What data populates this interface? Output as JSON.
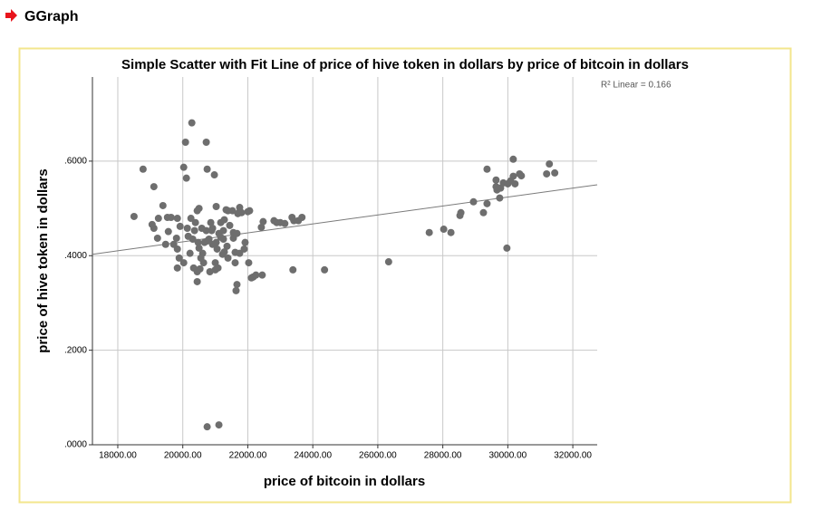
{
  "header": "GGraph",
  "chart_data": {
    "type": "scatter",
    "title": "Simple Scatter with Fit Line of price of hive token in dollars by price of bitcoin in dollars",
    "x_label": "price of bitcoin in dollars",
    "y_label": "price of hive token in dollars",
    "annotation": "R² Linear = 0.166",
    "color": "#6e6e6e",
    "fit_color": "#7a7a7a",
    "grid": true,
    "xlim": [
      17220,
      32750
    ],
    "ylim": [
      0,
      0.778
    ],
    "xticks": [
      {
        "value": 18000,
        "label": "18000.00"
      },
      {
        "value": 20000,
        "label": "20000.00"
      },
      {
        "value": 22000,
        "label": "22000.00"
      },
      {
        "value": 24000,
        "label": "24000.00"
      },
      {
        "value": 26000,
        "label": "26000.00"
      },
      {
        "value": 28000,
        "label": "28000.00"
      },
      {
        "value": 30000,
        "label": "30000.00"
      },
      {
        "value": 32000,
        "label": "32000.00"
      }
    ],
    "yticks": [
      {
        "value": 0,
        "label": ".0000"
      },
      {
        "value": 0.2,
        "label": ".2000"
      },
      {
        "value": 0.4,
        "label": ".4000"
      },
      {
        "value": 0.6,
        "label": ".6000"
      }
    ],
    "fit_line": {
      "x": [
        17220,
        32750
      ],
      "y": [
        0.403,
        0.55
      ]
    },
    "x": [
      18500,
      18778,
      19111,
      19056,
      19111,
      19250,
      19389,
      19222,
      19528,
      19639,
      19556,
      19472,
      19722,
      19806,
      19833,
      19833,
      19889,
      19833,
      19917,
      20028,
      20028,
      20083,
      20111,
      20139,
      20167,
      20250,
      20278,
      20306,
      20333,
      20361,
      20389,
      20444,
      20444,
      20472,
      20500,
      20528,
      20556,
      20583,
      20639,
      20722,
      20750,
      20722,
      20750,
      20806,
      20833,
      20861,
      20889,
      20917,
      20972,
      21000,
      21028,
      21056,
      21083,
      21111,
      21167,
      21222,
      21250,
      21278,
      21333,
      21361,
      21389,
      21444,
      21528,
      21556,
      21611,
      21639,
      21667,
      21694,
      21750,
      21750,
      21806,
      22000,
      22056,
      22111,
      22167,
      22250,
      22417,
      22444,
      22806,
      22889,
      23000,
      23139,
      23361,
      23389,
      23417,
      23556,
      23667,
      24361,
      26333,
      27583,
      28028,
      28250,
      28528,
      28556,
      28944,
      29250,
      29361,
      29361,
      29639,
      29639,
      29667,
      29750,
      29778,
      29861,
      29972,
      30000,
      30083,
      30167,
      30167,
      30222,
      30361,
      30417,
      31194,
      31278,
      31444,
      20750,
      21111,
      21556,
      21889,
      21611,
      21250,
      20917,
      21750,
      22028,
      21167,
      20611,
      20222,
      21389,
      21000,
      20667,
      21667,
      21917,
      22472,
      20500,
      21278,
      21028,
      20444
    ],
    "values": [
      0.483,
      0.583,
      0.546,
      0.466,
      0.458,
      0.479,
      0.506,
      0.437,
      0.481,
      0.481,
      0.451,
      0.424,
      0.424,
      0.437,
      0.479,
      0.414,
      0.395,
      0.374,
      0.462,
      0.385,
      0.587,
      0.64,
      0.564,
      0.458,
      0.441,
      0.479,
      0.681,
      0.435,
      0.374,
      0.453,
      0.47,
      0.495,
      0.345,
      0.428,
      0.416,
      0.372,
      0.395,
      0.458,
      0.385,
      0.64,
      0.583,
      0.453,
      0.431,
      0.435,
      0.366,
      0.47,
      0.453,
      0.458,
      0.571,
      0.37,
      0.428,
      0.414,
      0.374,
      0.447,
      0.47,
      0.403,
      0.435,
      0.408,
      0.497,
      0.42,
      0.495,
      0.464,
      0.495,
      0.449,
      0.407,
      0.326,
      0.339,
      0.489,
      0.493,
      0.502,
      0.491,
      0.493,
      0.495,
      0.353,
      0.355,
      0.359,
      0.46,
      0.359,
      0.474,
      0.47,
      0.47,
      0.468,
      0.481,
      0.37,
      0.474,
      0.474,
      0.481,
      0.37,
      0.387,
      0.449,
      0.456,
      0.449,
      0.485,
      0.491,
      0.514,
      0.491,
      0.51,
      0.583,
      0.56,
      0.546,
      0.539,
      0.522,
      0.543,
      0.554,
      0.416,
      0.552,
      0.558,
      0.604,
      0.568,
      0.552,
      0.573,
      0.569,
      0.573,
      0.594,
      0.575,
      0.038,
      0.042,
      0.437,
      0.414,
      0.385,
      0.453,
      0.424,
      0.405,
      0.385,
      0.439,
      0.405,
      0.405,
      0.395,
      0.385,
      0.428,
      0.447,
      0.428,
      0.472,
      0.5,
      0.476,
      0.504,
      0.366
    ]
  }
}
